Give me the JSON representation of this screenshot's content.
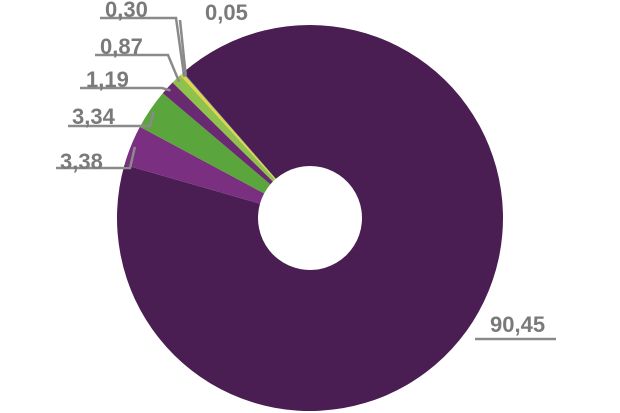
{
  "chart_data": {
    "type": "donut",
    "values": [
      90.45,
      3.38,
      3.34,
      1.19,
      0.87,
      0.3,
      0.05
    ],
    "value_labels": [
      "90,45",
      "3,38",
      "3,34",
      "1,19",
      "0,87",
      "0,30",
      "0,05"
    ],
    "colors": [
      "#4a1e52",
      "#7b2f80",
      "#5aa63c",
      "#6a2a72",
      "#8fc24c",
      "#e6d24a",
      "#2a6aa4"
    ]
  }
}
